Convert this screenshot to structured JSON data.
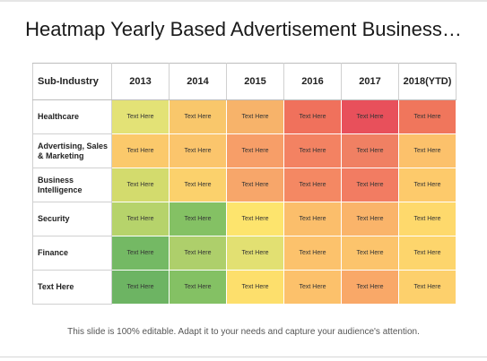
{
  "slide": {
    "title": "Heatmap Yearly Based Advertisement Business…",
    "footer": "This slide is 100% editable. Adapt it to your needs and capture your audience's attention."
  },
  "chart_data": {
    "type": "heatmap",
    "row_header": "Sub-Industry",
    "columns": [
      "2013",
      "2014",
      "2015",
      "2016",
      "2017",
      "2018(YTD)"
    ],
    "rows": [
      {
        "label": "Healthcare",
        "cells": [
          "Text Here",
          "Text Here",
          "Text Here",
          "Text Here",
          "Text Here",
          "Text Here"
        ],
        "colors": [
          "#e3e276",
          "#f9c76b",
          "#f7b36a",
          "#f0715c",
          "#e8505b",
          "#f0765c"
        ]
      },
      {
        "label": "Advertising, Sales & Marketing",
        "cells": [
          "Text Here",
          "Text Here",
          "Text Here",
          "Text Here",
          "Text Here",
          "Text Here"
        ],
        "colors": [
          "#fbc96b",
          "#fbc56c",
          "#f79e68",
          "#f38262",
          "#f08063",
          "#fcc16b"
        ]
      },
      {
        "label": "Business Intelligence",
        "cells": [
          "Text Here",
          "Text Here",
          "Text Here",
          "Text Here",
          "Text Here",
          "Text Here"
        ],
        "colors": [
          "#d3db6d",
          "#fbd16c",
          "#f7a66a",
          "#f48863",
          "#f27c62",
          "#fdca6b"
        ]
      },
      {
        "label": "Security",
        "cells": [
          "Text Here",
          "Text Here",
          "Text Here",
          "Text Here",
          "Text Here",
          "Text Here"
        ],
        "colors": [
          "#b6d36b",
          "#84c164",
          "#fde46d",
          "#fbbe6b",
          "#fab46a",
          "#fed96c"
        ]
      },
      {
        "label": "Finance",
        "cells": [
          "Text Here",
          "Text Here",
          "Text Here",
          "Text Here",
          "Text Here",
          "Text Here"
        ],
        "colors": [
          "#74b964",
          "#aecf6b",
          "#e2e072",
          "#fcc26c",
          "#fcc46c",
          "#fdd56c"
        ]
      },
      {
        "label": "Text Here",
        "cells": [
          "Text Here",
          "Text Here",
          "Text Here",
          "Text Here",
          "Text Here",
          "Text Here"
        ],
        "colors": [
          "#6db463",
          "#84c164",
          "#fddf6c",
          "#fcc16b",
          "#f9a868",
          "#fdd06c"
        ]
      }
    ]
  }
}
